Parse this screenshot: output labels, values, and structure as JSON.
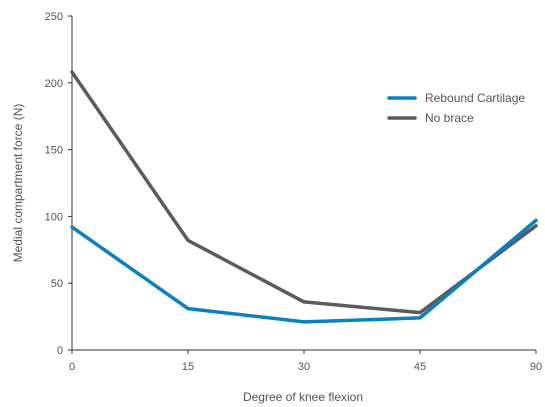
{
  "chart_data": {
    "type": "line",
    "title": "",
    "xlabel": "Degree of knee flexion",
    "ylabel": "Medial compartment force (N)",
    "x": [
      0,
      15,
      30,
      45,
      90
    ],
    "x_tick_labels": [
      "0",
      "15",
      "30",
      "45",
      "90"
    ],
    "ylim": [
      0,
      250
    ],
    "y_ticks": [
      0,
      50,
      100,
      150,
      200,
      250
    ],
    "grid": false,
    "legend_position": "top-right",
    "series": [
      {
        "name": "Rebound Cartilage",
        "color": "#0a7fc1",
        "values": [
          92,
          31,
          21,
          24,
          97
        ]
      },
      {
        "name": "No brace",
        "color": "#5b5b5b",
        "values": [
          208,
          82,
          36,
          28,
          93
        ]
      }
    ]
  }
}
